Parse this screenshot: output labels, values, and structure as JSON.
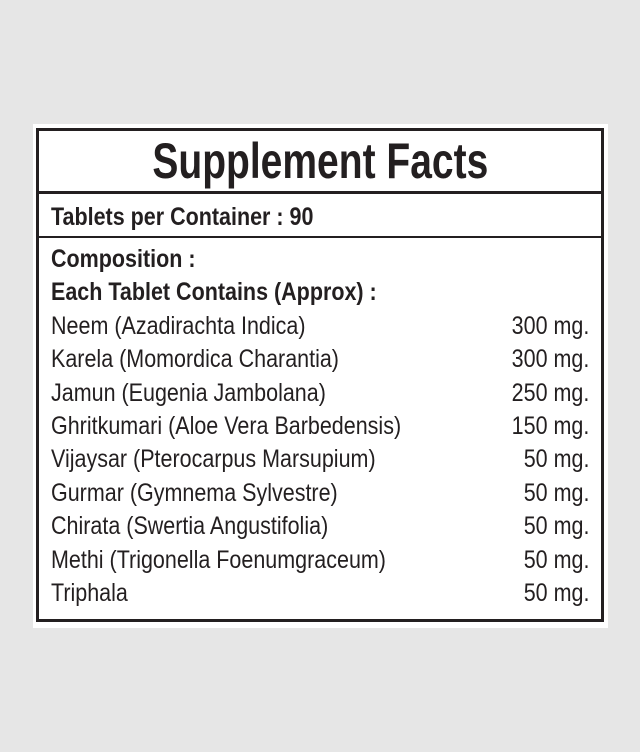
{
  "title": "Supplement Facts",
  "tablets_per_container": "Tablets per Container : 90",
  "composition_label": "Composition :",
  "each_tablet_label": "Each Tablet Contains (Approx) :",
  "ingredients": [
    {
      "name": "Neem (Azadirachta Indica)",
      "amount": "300 mg."
    },
    {
      "name": "Karela (Momordica Charantia)",
      "amount": "300 mg."
    },
    {
      "name": "Jamun (Eugenia Jambolana)",
      "amount": "250 mg."
    },
    {
      "name": "Ghritkumari (Aloe Vera Barbedensis)",
      "amount": "150 mg."
    },
    {
      "name": "Vijaysar (Pterocarpus Marsupium)",
      "amount": "50 mg."
    },
    {
      "name": "Gurmar (Gymnema Sylvestre)",
      "amount": "50 mg."
    },
    {
      "name": "Chirata (Swertia Angustifolia)",
      "amount": "50 mg."
    },
    {
      "name": "Methi (Trigonella Foenumgraceum)",
      "amount": "50 mg."
    },
    {
      "name": "Triphala",
      "amount": "50 mg."
    }
  ]
}
